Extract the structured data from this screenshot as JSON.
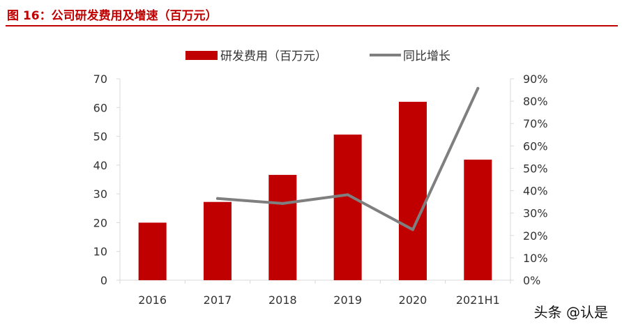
{
  "figure": {
    "title": "图 16：公司研发费用及增速（百万元）",
    "watermark": "头条 @认是"
  },
  "colors": {
    "bar": "#c00000",
    "line": "#7f7f7f",
    "axis": "#d9d9d9",
    "title": "#c00000"
  },
  "chart_data": {
    "type": "bar",
    "categories": [
      "2016",
      "2017",
      "2018",
      "2019",
      "2020",
      "2021H1"
    ],
    "series": [
      {
        "name": "研发费用（百万元）",
        "type": "bar",
        "axis": "left",
        "values": [
          20.0,
          27.2,
          36.6,
          50.6,
          62.0,
          41.9
        ]
      },
      {
        "name": "同比增长",
        "type": "line",
        "axis": "right",
        "values": [
          null,
          36.5,
          34.3,
          38.2,
          22.6,
          85.7
        ]
      }
    ],
    "y_left": {
      "ylim": [
        0,
        70
      ],
      "ticks": [
        0,
        10,
        20,
        30,
        40,
        50,
        60,
        70
      ]
    },
    "y_right": {
      "ylim": [
        0,
        90
      ],
      "ticks": [
        "0%",
        "10%",
        "20%",
        "30%",
        "40%",
        "50%",
        "60%",
        "70%",
        "80%",
        "90%"
      ]
    },
    "legend": {
      "position": "top-center"
    },
    "grid": false
  }
}
